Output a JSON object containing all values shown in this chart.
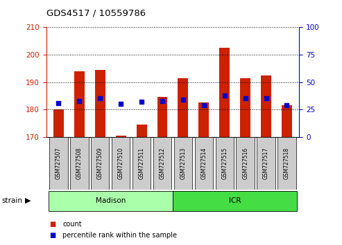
{
  "title": "GDS4517 / 10559786",
  "samples": [
    "GSM727507",
    "GSM727508",
    "GSM727509",
    "GSM727510",
    "GSM727511",
    "GSM727512",
    "GSM727513",
    "GSM727514",
    "GSM727515",
    "GSM727516",
    "GSM727517",
    "GSM727518"
  ],
  "count_values": [
    180,
    194,
    194.5,
    170.5,
    174.5,
    184.5,
    191.5,
    182.5,
    202.5,
    191.5,
    192.5,
    181.5
  ],
  "percentile_values": [
    31,
    33,
    35,
    30,
    32,
    33,
    34,
    29,
    38,
    35,
    35,
    29
  ],
  "count_base": 170,
  "ylim_left": [
    170,
    210
  ],
  "ylim_right": [
    0,
    100
  ],
  "yticks_left": [
    170,
    180,
    190,
    200,
    210
  ],
  "yticks_right": [
    0,
    25,
    50,
    75,
    100
  ],
  "groups": [
    {
      "name": "Madison",
      "start": 0,
      "end": 6,
      "color": "#aaffaa"
    },
    {
      "name": "ICR",
      "start": 6,
      "end": 12,
      "color": "#44dd44"
    }
  ],
  "bar_color": "#cc2200",
  "dot_color": "#0000cc",
  "bar_width": 0.5,
  "background_color": "#ffffff",
  "left_axis_color": "#cc2200",
  "right_axis_color": "#0000cc",
  "label_box_color": "#cccccc",
  "figsize": [
    4.93,
    3.54
  ],
  "dpi": 100
}
